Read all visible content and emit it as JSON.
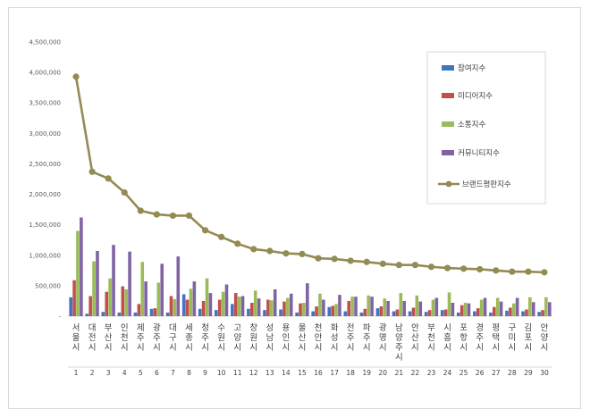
{
  "chart_data": {
    "type": "bar",
    "categories": [
      "서울시",
      "대전시",
      "부산시",
      "인천시",
      "제주시",
      "광주시",
      "대구시",
      "세종시",
      "청주시",
      "수원시",
      "고양시",
      "창원시",
      "성남시",
      "용인시",
      "울산시",
      "천안시",
      "화성시",
      "전주시",
      "파주시",
      "광명시",
      "남양주시",
      "안산시",
      "부천시",
      "시흥시",
      "포항시",
      "경주시",
      "평택시",
      "구미시",
      "김포시",
      "안양시"
    ],
    "ranks": [
      "1",
      "2",
      "3",
      "4",
      "5",
      "6",
      "7",
      "8",
      "9",
      "10",
      "11",
      "12",
      "13",
      "14",
      "15",
      "16",
      "17",
      "18",
      "19",
      "20",
      "21",
      "22",
      "23",
      "24",
      "25",
      "26",
      "27",
      "28",
      "29",
      "30"
    ],
    "ylim": [
      0,
      4500000
    ],
    "yticks": [
      "-",
      "500,000",
      "1,000,000",
      "1,500,000",
      "2,000,000",
      "2,500,000",
      "3,000,000",
      "3,500,000",
      "4,000,000",
      "4,500,000"
    ],
    "legend_position": "top-right",
    "series": [
      {
        "name": "참여지수",
        "type": "bar",
        "color": "#4472c4",
        "values": [
          310000,
          40000,
          70000,
          60000,
          60000,
          120000,
          60000,
          360000,
          120000,
          100000,
          200000,
          120000,
          100000,
          110000,
          60000,
          80000,
          150000,
          80000,
          60000,
          130000,
          80000,
          80000,
          70000,
          100000,
          60000,
          80000,
          60000,
          90000,
          80000,
          70000
        ]
      },
      {
        "name": "미디어지수",
        "type": "bar",
        "color": "#c0504d",
        "values": [
          590000,
          330000,
          400000,
          490000,
          200000,
          130000,
          330000,
          270000,
          250000,
          270000,
          380000,
          220000,
          270000,
          240000,
          210000,
          160000,
          170000,
          250000,
          120000,
          160000,
          110000,
          140000,
          100000,
          110000,
          180000,
          130000,
          150000,
          140000,
          110000,
          100000
        ]
      },
      {
        "name": "소통지수",
        "type": "bar",
        "color": "#9bbb59",
        "values": [
          1400000,
          900000,
          620000,
          440000,
          890000,
          550000,
          280000,
          450000,
          620000,
          400000,
          320000,
          420000,
          260000,
          300000,
          220000,
          370000,
          200000,
          320000,
          340000,
          290000,
          380000,
          340000,
          270000,
          390000,
          220000,
          270000,
          300000,
          210000,
          310000,
          310000
        ]
      },
      {
        "name": "커뮤니티지수",
        "type": "bar",
        "color": "#8064a2",
        "values": [
          1620000,
          1070000,
          1170000,
          1060000,
          570000,
          860000,
          980000,
          570000,
          380000,
          520000,
          330000,
          290000,
          440000,
          370000,
          540000,
          270000,
          350000,
          320000,
          320000,
          250000,
          250000,
          240000,
          300000,
          220000,
          210000,
          300000,
          240000,
          300000,
          230000,
          230000
        ]
      },
      {
        "name": "브랜드평판지수",
        "type": "line",
        "color": "#948a54",
        "values": [
          3930000,
          2370000,
          2260000,
          2030000,
          1730000,
          1670000,
          1650000,
          1650000,
          1410000,
          1300000,
          1190000,
          1100000,
          1070000,
          1030000,
          1020000,
          950000,
          940000,
          910000,
          890000,
          860000,
          840000,
          840000,
          810000,
          790000,
          780000,
          770000,
          750000,
          730000,
          730000,
          720000
        ]
      }
    ]
  }
}
